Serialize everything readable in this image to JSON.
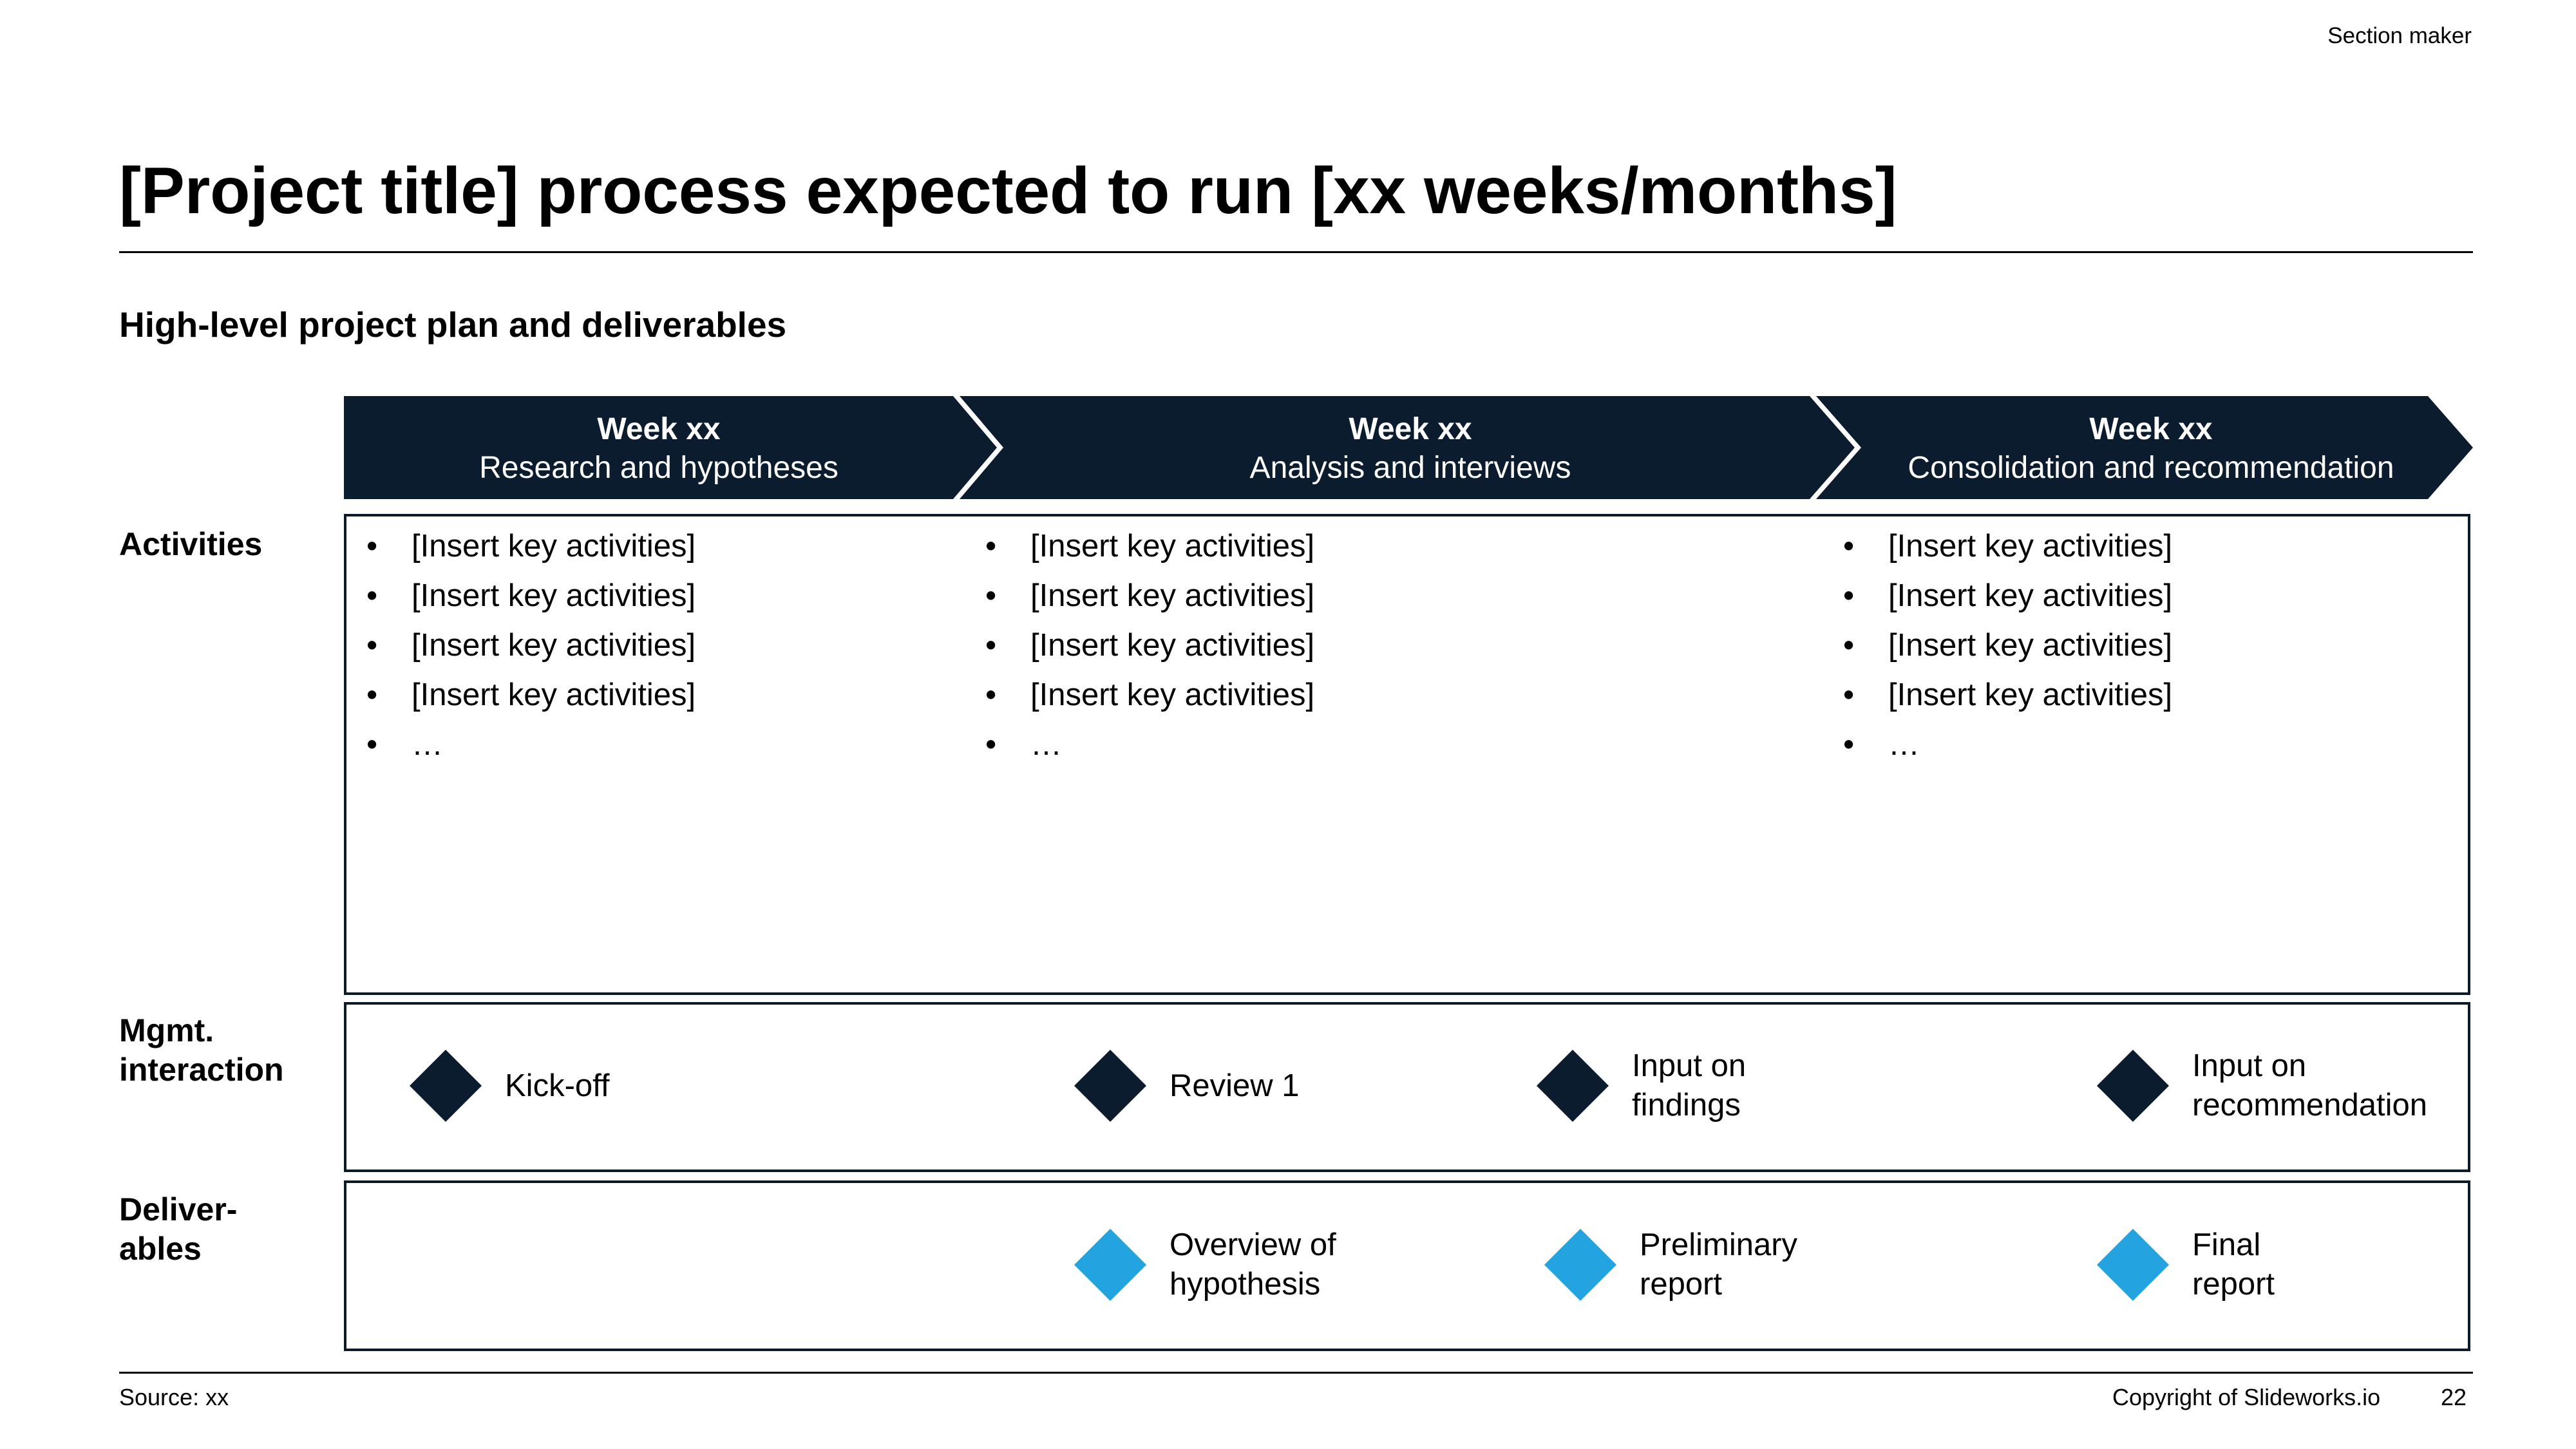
{
  "header": {
    "section_label": "Section maker",
    "title": "[Project title] process expected to run [xx weeks/months]",
    "subtitle": "High-level project plan and deliverables"
  },
  "colors": {
    "navy": "#0a1c2e",
    "accent_blue": "#23a3df",
    "white": "#ffffff"
  },
  "phases": [
    {
      "week": "Week xx",
      "name": "Research and hypotheses"
    },
    {
      "week": "Week xx",
      "name": "Analysis and interviews"
    },
    {
      "week": "Week xx",
      "name": "Consolidation and recommendation"
    }
  ],
  "rows": {
    "activities": "Activities",
    "mgmt": "Mgmt.\ninteraction",
    "deliverables": "Deliver-\nables"
  },
  "activities": [
    [
      "[Insert key activities]",
      "[Insert key activities]",
      "[Insert key activities]",
      "[Insert key activities]",
      "…"
    ],
    [
      "[Insert key activities]",
      "[Insert key activities]",
      "[Insert key activities]",
      "[Insert key activities]",
      "…"
    ],
    [
      "[Insert key activities]",
      "[Insert key activities]",
      "[Insert key activities]",
      "[Insert key activities]",
      "…"
    ]
  ],
  "mgmt_interactions": [
    {
      "label": "Kick-off",
      "icon": "navy-diamond-icon"
    },
    {
      "label": "Review 1",
      "icon": "navy-diamond-icon"
    },
    {
      "label": "Input on\nfindings",
      "icon": "navy-diamond-icon"
    },
    {
      "label": "Input on\nrecommendation",
      "icon": "navy-diamond-icon"
    }
  ],
  "deliverables": [
    {
      "label": "Overview of\nhypothesis",
      "icon": "blue-diamond-icon"
    },
    {
      "label": "Preliminary\nreport",
      "icon": "blue-diamond-icon"
    },
    {
      "label": "Final\nreport",
      "icon": "blue-diamond-icon"
    }
  ],
  "footer": {
    "source": "Source: xx",
    "copyright": "Copyright of Slideworks.io",
    "page_number": "22"
  }
}
